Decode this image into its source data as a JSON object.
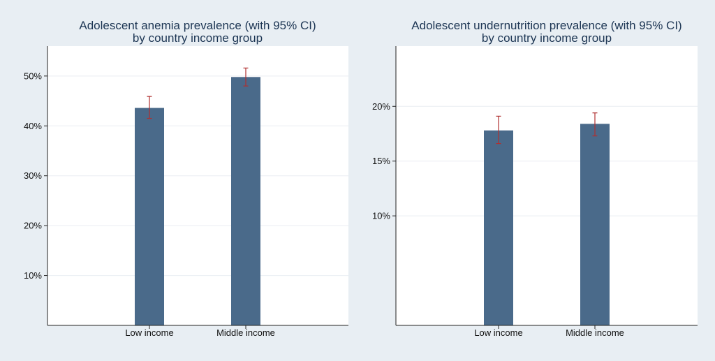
{
  "chart_data": [
    {
      "type": "bar",
      "title": "Adolescent anemia prevalence (with 95% CI)",
      "subtitle": "by country income group",
      "xlabel": "",
      "ylabel": "",
      "categories": [
        "Low income",
        "Middle income"
      ],
      "values": [
        43.6,
        49.8
      ],
      "ci_low": [
        41.5,
        48.0
      ],
      "ci_high": [
        45.9,
        51.6
      ],
      "ylim": [
        0,
        56
      ],
      "yticks": [
        10,
        20,
        30,
        40,
        50
      ],
      "tick_suffix": "%",
      "grid": true,
      "colors": {
        "bar": "#4a6a8a",
        "ci": "#b03030"
      }
    },
    {
      "type": "bar",
      "title": "Adolescent undernutrition prevalence (with 95% CI)",
      "subtitle": "by country income group",
      "xlabel": "",
      "ylabel": "",
      "categories": [
        "Low income",
        "Middle income"
      ],
      "values": [
        17.8,
        18.4
      ],
      "ci_low": [
        16.6,
        17.3
      ],
      "ci_high": [
        19.1,
        19.4
      ],
      "ylim": [
        0,
        25.5
      ],
      "yticks": [
        10,
        15,
        20
      ],
      "tick_suffix": "%",
      "grid": true,
      "colors": {
        "bar": "#4a6a8a",
        "ci": "#b03030"
      }
    }
  ]
}
